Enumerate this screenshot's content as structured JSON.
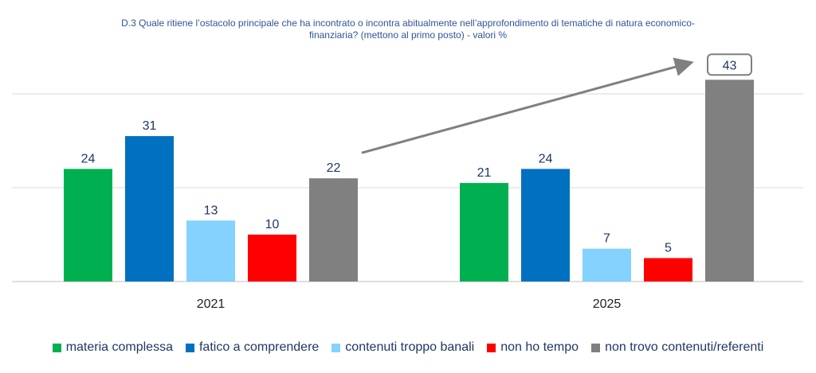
{
  "chart_data": {
    "type": "bar",
    "title_lines": [
      "D.3 Quale ritiene l’ostacolo principale che ha incontrato o incontra abitualmente nell’approfondimento di tematiche di natura economico-",
      "finanziaria? (mettono al primo posto) - valori %"
    ],
    "categories": [
      "2021",
      "2025"
    ],
    "series": [
      {
        "name": "materia complessa",
        "color": "#00b050",
        "values": [
          24,
          21
        ]
      },
      {
        "name": "fatico a comprendere",
        "color": "#0070c0",
        "values": [
          31,
          24
        ]
      },
      {
        "name": "contenuti troppo banali",
        "color": "#85d1ff",
        "values": [
          13,
          7
        ]
      },
      {
        "name": "non ho tempo",
        "color": "#ff0000",
        "values": [
          10,
          5
        ]
      },
      {
        "name": "non trovo contenuti/referenti",
        "color": "#808080",
        "values": [
          22,
          43
        ]
      }
    ],
    "ylim": [
      0,
      50
    ],
    "grid": true,
    "legend_position": "bottom",
    "highlight": {
      "series": "non trovo contenuti/referenti",
      "category": "2025",
      "boxed_label": true,
      "arrow_from_category": "2021"
    }
  }
}
